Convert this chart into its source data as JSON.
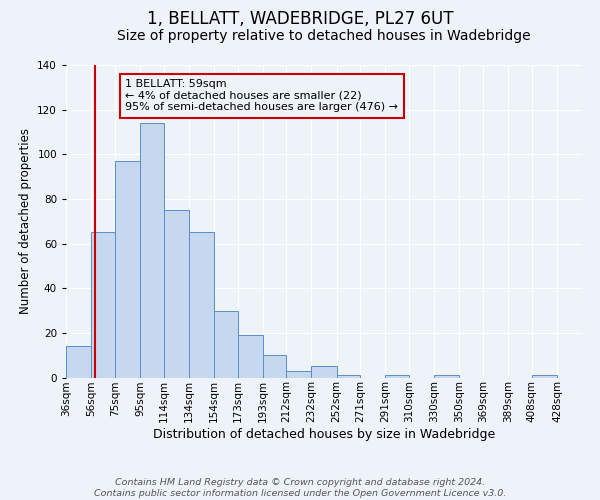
{
  "title": "1, BELLATT, WADEBRIDGE, PL27 6UT",
  "subtitle": "Size of property relative to detached houses in Wadebridge",
  "xlabel": "Distribution of detached houses by size in Wadebridge",
  "ylabel": "Number of detached properties",
  "bar_labels": [
    "36sqm",
    "56sqm",
    "75sqm",
    "95sqm",
    "114sqm",
    "134sqm",
    "154sqm",
    "173sqm",
    "193sqm",
    "212sqm",
    "232sqm",
    "252sqm",
    "271sqm",
    "291sqm",
    "310sqm",
    "330sqm",
    "350sqm",
    "369sqm",
    "389sqm",
    "408sqm",
    "428sqm"
  ],
  "bar_values": [
    14,
    65,
    97,
    114,
    75,
    65,
    30,
    19,
    10,
    3,
    5,
    1,
    0,
    1,
    0,
    1,
    0,
    0,
    0,
    1,
    0
  ],
  "bar_color": "#c5d8f0",
  "bar_edge_color": "#5a8fc4",
  "ylim": [
    0,
    140
  ],
  "yticks": [
    0,
    20,
    40,
    60,
    80,
    100,
    120,
    140
  ],
  "property_line_x": 59,
  "property_line_color": "#cc0000",
  "annotation_box_text": "1 BELLATT: 59sqm\n← 4% of detached houses are smaller (22)\n95% of semi-detached houses are larger (476) →",
  "annotation_box_color": "#cc0000",
  "footer_line1": "Contains HM Land Registry data © Crown copyright and database right 2024.",
  "footer_line2": "Contains public sector information licensed under the Open Government Licence v3.0.",
  "background_color": "#eef2f9",
  "grid_color": "#ffffff",
  "title_fontsize": 12,
  "subtitle_fontsize": 10,
  "xlabel_fontsize": 9,
  "ylabel_fontsize": 8.5,
  "tick_fontsize": 7.5,
  "annotation_fontsize": 8,
  "footer_fontsize": 6.8
}
